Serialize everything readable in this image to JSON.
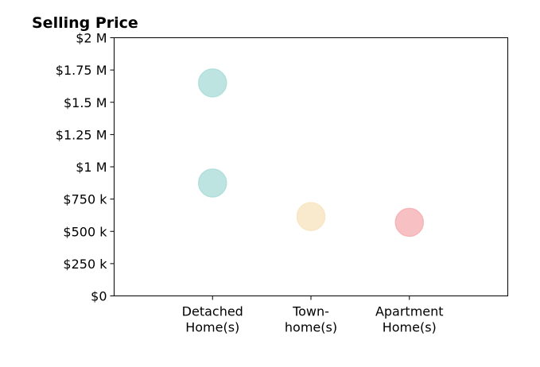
{
  "chart_data": {
    "type": "scatter",
    "title": "Selling Price",
    "xlabel": "",
    "ylabel": "",
    "categories": [
      [
        "Detached",
        "Home(s)"
      ],
      [
        "Town-",
        "home(s)"
      ],
      [
        "Apartment",
        "Home(s)"
      ]
    ],
    "xlim": [
      -1,
      3
    ],
    "ylim": [
      0,
      2000000
    ],
    "yticks": [
      {
        "value": 0,
        "label": "$0"
      },
      {
        "value": 250000,
        "label": "$250 k"
      },
      {
        "value": 500000,
        "label": "$500 k"
      },
      {
        "value": 750000,
        "label": "$750 k"
      },
      {
        "value": 1000000,
        "label": "$1 M"
      },
      {
        "value": 1250000,
        "label": "$1.25 M"
      },
      {
        "value": 1500000,
        "label": "$1.5 M"
      },
      {
        "value": 1750000,
        "label": "$1.75 M"
      },
      {
        "value": 2000000,
        "label": "$2 M"
      }
    ],
    "points": [
      {
        "category_index": 0,
        "value": 1650000,
        "color": "#b2dfdb"
      },
      {
        "category_index": 0,
        "value": 875000,
        "color": "#b2dfdb"
      },
      {
        "category_index": 1,
        "value": 615000,
        "color": "#f8e6c4"
      },
      {
        "category_index": 2,
        "value": 570000,
        "color": "#f6b5b9"
      }
    ],
    "grid": false,
    "legend": "none"
  }
}
